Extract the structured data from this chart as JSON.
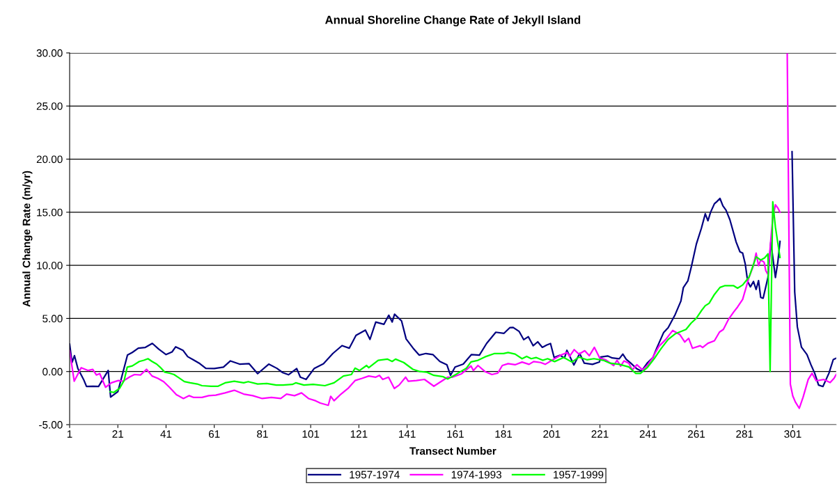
{
  "chart_data": {
    "type": "line",
    "title": "Annual Shoreline Change Rate of Jekyll Island",
    "xlabel": "Transect Number",
    "ylabel": "Annual Change Rate (m/yr)",
    "xlim": [
      1,
      319
    ],
    "xticks": [
      1,
      21,
      41,
      61,
      81,
      101,
      121,
      141,
      161,
      181,
      201,
      221,
      241,
      261,
      281,
      301
    ],
    "ylim": [
      -5,
      30
    ],
    "yticks": [
      {
        "value": -5,
        "label": "-5.00"
      },
      {
        "value": 0,
        "label": "0.00"
      },
      {
        "value": 5,
        "label": "5.00"
      },
      {
        "value": 10,
        "label": "10.00"
      },
      {
        "value": 15,
        "label": "15.00"
      },
      {
        "value": 20,
        "label": "20.00"
      },
      {
        "value": 25,
        "label": "25.00"
      },
      {
        "value": 30,
        "label": "30.00"
      }
    ],
    "grid": "y",
    "legend": "bottom",
    "marker": "none",
    "line_style": "solid",
    "series": [
      {
        "name": "1957-1974",
        "color": "#000080",
        "x": [
          1,
          2,
          3,
          4.4,
          6.8,
          8,
          10.7,
          13,
          17,
          18,
          21,
          25,
          27,
          29.5,
          32.4,
          35.3,
          38,
          41,
          43.5,
          45,
          48,
          50,
          52,
          55,
          57.5,
          61,
          64.8,
          67.7,
          71.5,
          75.4,
          79,
          83.6,
          87,
          89.4,
          91.8,
          95.2,
          96.7,
          99.1,
          102.5,
          106.3,
          110.2,
          114,
          117,
          119.8,
          123.7,
          125.6,
          128,
          131.4,
          133.4,
          134.8,
          135.8,
          138.7,
          140.6,
          143.5,
          146,
          148.8,
          151.7,
          154.6,
          157.5,
          159,
          160.9,
          164.3,
          167.7,
          171,
          174,
          177.8,
          181.2,
          183.6,
          185,
          187.5,
          189.4,
          191.3,
          193.3,
          195.2,
          197.1,
          199,
          200.5,
          202,
          204.4,
          206.3,
          207.3,
          210.2,
          212.6,
          214.5,
          217.9,
          220.8,
          221.3,
          224.2,
          226.1,
          229,
          230.5,
          231.9,
          233.8,
          236.3,
          238.2,
          240.6,
          243,
          244.5,
          247.4,
          249.3,
          252.2,
          254.6,
          255.6,
          257.5,
          259,
          261,
          263.1,
          264.7,
          265.8,
          266.9,
          268.5,
          269.5,
          270.8,
          272,
          273.3,
          274.9,
          275.9,
          277.5,
          279.1,
          280.2,
          281.3,
          282.3,
          283.4,
          284.7,
          285.8,
          286.8,
          287.7,
          288.7,
          290.7,
          291.9,
          293.8,
          294.8,
          295.7,
          298,
          300.7,
          301.8,
          302.9,
          304.6,
          306.9,
          308.5,
          310.1,
          311.7,
          313.5,
          316,
          317.8,
          319
        ],
        "values": [
          2.58,
          0.85,
          1.5,
          0.3,
          -0.75,
          -1.4,
          -1.38,
          -1.4,
          0.1,
          -2.4,
          -1.9,
          1.55,
          1.8,
          2.2,
          2.27,
          2.65,
          2.1,
          1.6,
          1.85,
          2.33,
          2.0,
          1.4,
          1.15,
          0.75,
          0.3,
          0.28,
          0.42,
          1.0,
          0.7,
          0.75,
          -0.2,
          0.7,
          0.3,
          -0.1,
          -0.3,
          0.28,
          -0.53,
          -0.74,
          0.3,
          0.74,
          1.7,
          2.44,
          2.2,
          3.4,
          3.9,
          3.03,
          4.66,
          4.45,
          5.3,
          4.66,
          5.4,
          4.77,
          3.07,
          2.2,
          1.55,
          1.7,
          1.6,
          0.95,
          0.64,
          -0.36,
          0.42,
          0.7,
          1.6,
          1.55,
          2.65,
          3.7,
          3.6,
          4.13,
          4.15,
          3.77,
          3.0,
          3.28,
          2.43,
          2.8,
          2.28,
          2.5,
          2.64,
          1.32,
          1.53,
          1.28,
          2.0,
          0.62,
          1.7,
          0.79,
          0.68,
          0.9,
          1.36,
          1.47,
          1.28,
          1.2,
          1.64,
          1.15,
          0.79,
          0.26,
          0.04,
          0.79,
          1.32,
          2.17,
          3.66,
          4.13,
          5.36,
          6.64,
          7.9,
          8.55,
          9.94,
          12.0,
          13.5,
          14.85,
          14.2,
          15.0,
          15.8,
          16.0,
          16.3,
          15.6,
          15.2,
          14.3,
          13.5,
          12.2,
          11.27,
          11.15,
          10.1,
          8.48,
          7.97,
          8.48,
          7.73,
          8.56,
          6.98,
          6.9,
          8.86,
          12.2,
          8.86,
          10.3,
          12.25,
          null,
          20.7,
          7.5,
          4.2,
          2.3,
          1.6,
          0.66,
          -0.16,
          -1.27,
          -1.41,
          -0.16,
          1.13,
          1.25
        ]
      },
      {
        "name": "1974-1993",
        "color": "#ff00ff",
        "x": [
          1,
          2.9,
          5.8,
          8.7,
          10.6,
          12.1,
          13.5,
          15.9,
          18.3,
          21.2,
          23.1,
          26,
          27.9,
          30.4,
          32.9,
          35.2,
          37.6,
          40,
          42.4,
          45.3,
          48.2,
          50.6,
          52.5,
          55.9,
          58.7,
          61.6,
          65.5,
          69.3,
          73.2,
          77,
          80.9,
          84.7,
          88.6,
          91,
          94.3,
          97.2,
          100.1,
          103,
          105,
          108.3,
          109.3,
          110.7,
          113.6,
          116.5,
          119.4,
          122.3,
          125.1,
          128,
          129.5,
          130.9,
          133.3,
          135.7,
          137.7,
          140.4,
          141.5,
          144.9,
          148.2,
          152.1,
          155,
          157.9,
          159.8,
          163.6,
          167.5,
          168.5,
          170.4,
          173.3,
          176.2,
          178.6,
          180.5,
          182.9,
          185.8,
          188.7,
          191.6,
          193.5,
          196.4,
          198.3,
          202.2,
          205,
          207.4,
          208.4,
          210.3,
          212.3,
          214.7,
          216.6,
          218.7,
          220.9,
          223.3,
          226.7,
          228.1,
          229.6,
          231,
          233,
          234.4,
          236.3,
          238.7,
          240.6,
          242.6,
          245.5,
          248.3,
          251.2,
          254.1,
          256.2,
          257.8,
          259.4,
          262.6,
          263.6,
          265.8,
          268.5,
          270.6,
          272.2,
          274.3,
          276.5,
          278.1,
          280.2,
          282.9,
          284.5,
          285.8,
          286.8,
          287.7,
          289.1,
          289.8,
          290.7,
          292,
          292.7,
          293.8,
          294.8,
          295.7,
          297,
          298.7,
          300,
          301,
          302.1,
          303.7,
          305.3,
          307.4,
          309,
          310.7,
          313.9,
          316.5,
          318.1,
          319
        ],
        "values": [
          1.97,
          -0.91,
          0.36,
          0.1,
          0.2,
          -0.32,
          -0.2,
          -1.48,
          -1.06,
          -0.85,
          -0.91,
          -0.49,
          -0.28,
          -0.32,
          0.21,
          -0.42,
          -0.64,
          -0.95,
          -1.48,
          -2.18,
          -2.54,
          -2.27,
          -2.44,
          -2.44,
          -2.27,
          -2.22,
          -2.01,
          -1.76,
          -2.12,
          -2.27,
          -2.54,
          -2.44,
          -2.54,
          -2.12,
          -2.27,
          -2.01,
          -2.54,
          -2.75,
          -2.97,
          -3.18,
          -2.33,
          -2.75,
          -2.12,
          -1.59,
          -0.85,
          -0.64,
          -0.42,
          -0.53,
          -0.36,
          -0.74,
          -0.53,
          -1.59,
          -1.27,
          -0.53,
          -0.91,
          -0.85,
          -0.74,
          -1.38,
          -0.95,
          -0.53,
          -0.53,
          -0.21,
          0.53,
          0.1,
          0.57,
          0.0,
          -0.28,
          -0.15,
          0.57,
          0.74,
          0.64,
          0.89,
          0.68,
          0.94,
          0.85,
          0.68,
          1.21,
          1.57,
          1.79,
          1.43,
          2.06,
          1.64,
          1.96,
          1.49,
          2.28,
          1.28,
          1.11,
          0.57,
          1.06,
          0.51,
          1.0,
          0.79,
          0.15,
          0.64,
          0.15,
          0.57,
          1.21,
          2.38,
          3.02,
          3.87,
          3.49,
          2.78,
          3.13,
          2.19,
          2.43,
          2.26,
          2.66,
          2.9,
          3.72,
          3.96,
          4.9,
          5.61,
          6.08,
          6.79,
          8.91,
          9.85,
          11.15,
          9.97,
          10.5,
          10.3,
          9.5,
          9.14,
          12.7,
          14.45,
          15.7,
          15.4,
          15.0,
          null,
          29.9,
          -1.2,
          -2.3,
          -2.88,
          -3.46,
          -2.4,
          -0.75,
          -0.16,
          -0.87,
          -0.75,
          -1.04,
          -0.64,
          -0.28
        ]
      },
      {
        "name": "1957-1999",
        "color": "#00ff00",
        "x": [
          17.8,
          19.3,
          21.7,
          23.6,
          24.9,
          27,
          29.9,
          31.8,
          33.5,
          35.2,
          37.1,
          38.5,
          40.5,
          42.4,
          44.3,
          46.2,
          48.6,
          51,
          53.9,
          55.9,
          59.7,
          62.6,
          65.5,
          69.3,
          73.2,
          75.1,
          79,
          82.8,
          86.7,
          89.5,
          93.4,
          94.8,
          98.2,
          102,
          106.9,
          110.7,
          114.6,
          117.9,
          119.4,
          121.3,
          124.2,
          125.1,
          129,
          132.8,
          134.8,
          136.2,
          139.6,
          143.4,
          146.3,
          149.2,
          152.1,
          156,
          157.9,
          161.7,
          165.6,
          167.5,
          170.4,
          173.3,
          177.1,
          181,
          182.9,
          185.8,
          188.7,
          190.6,
          192.5,
          194.5,
          197.3,
          199.3,
          202.2,
          206,
          209.4,
          212.3,
          215.6,
          218.5,
          222.4,
          225.2,
          229.1,
          233,
          235.8,
          237.8,
          240.6,
          243.5,
          246.4,
          249.3,
          252.2,
          256.7,
          258.8,
          261,
          263.1,
          264.7,
          266.3,
          268.5,
          270.8,
          272.7,
          276.5,
          278.1,
          280.2,
          282.9,
          285.8,
          287.7,
          289.3,
          290.7,
          291.6,
          292.7,
          293.8,
          295.7
        ],
        "values": [
          -1.9,
          -1.97,
          -1.59,
          -0.85,
          0.42,
          0.53,
          0.95,
          1.06,
          1.21,
          0.95,
          0.7,
          0.42,
          -0.06,
          -0.15,
          -0.28,
          -0.57,
          -0.95,
          -1.06,
          -1.17,
          -1.33,
          -1.38,
          -1.38,
          -1.06,
          -0.91,
          -1.06,
          -0.95,
          -1.17,
          -1.12,
          -1.27,
          -1.27,
          -1.21,
          -1.06,
          -1.27,
          -1.21,
          -1.33,
          -1.06,
          -0.42,
          -0.28,
          0.32,
          0.1,
          0.57,
          0.36,
          1.06,
          1.17,
          0.95,
          1.17,
          0.85,
          0.21,
          0.0,
          -0.06,
          -0.36,
          -0.49,
          -0.7,
          -0.21,
          0.32,
          0.91,
          1.06,
          1.38,
          1.69,
          1.69,
          1.79,
          1.64,
          1.21,
          1.43,
          1.21,
          1.32,
          1.06,
          1.21,
          0.94,
          1.32,
          0.89,
          1.36,
          1.11,
          1.21,
          1.06,
          0.79,
          0.68,
          0.43,
          -0.17,
          -0.17,
          0.36,
          1.21,
          2.17,
          3.02,
          3.55,
          3.96,
          4.55,
          5.02,
          5.73,
          6.2,
          6.43,
          7.26,
          7.92,
          8.08,
          8.08,
          7.85,
          8.15,
          8.91,
          10.8,
          10.5,
          10.7,
          11.08,
          0.0,
          15.98,
          13.6,
          10.75
        ]
      }
    ]
  }
}
